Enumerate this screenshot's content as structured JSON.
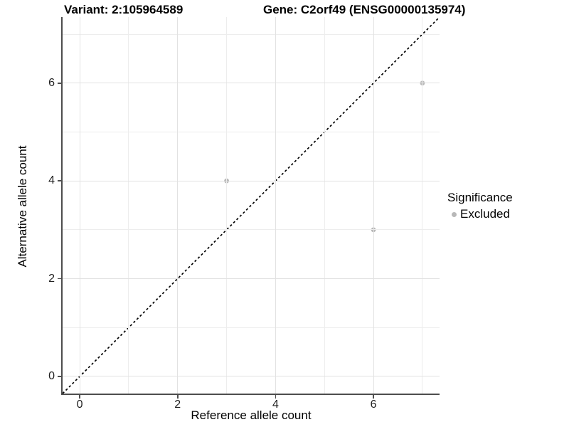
{
  "titles": {
    "variant": "Variant: 2:105964589",
    "gene": "Gene: C2orf49 (ENSG00000135974)"
  },
  "chart_data": {
    "type": "scatter",
    "xlabel": "Reference allele count",
    "ylabel": "Alternative allele count",
    "xlim": [
      -0.35,
      7.35
    ],
    "ylim": [
      -0.35,
      7.35
    ],
    "x_ticks": [
      0,
      2,
      4,
      6
    ],
    "y_ticks": [
      0,
      2,
      4,
      6
    ],
    "x_minor": [
      1,
      3,
      5,
      7
    ],
    "y_minor": [
      1,
      3,
      5,
      7
    ],
    "grid": true,
    "points": [
      {
        "x": 3,
        "y": 4,
        "significance": "Excluded"
      },
      {
        "x": 6,
        "y": 3,
        "significance": "Excluded"
      },
      {
        "x": 7,
        "y": 6,
        "significance": "Excluded"
      }
    ],
    "identity_line": {
      "slope": 1,
      "intercept": 0,
      "style": "dashed",
      "color": "#000000"
    },
    "point_color": "#b8b8b8",
    "legend_position": "right"
  },
  "legend": {
    "title": "Significance",
    "items": [
      {
        "label": "Excluded",
        "color": "#b8b8b8"
      }
    ]
  },
  "colors": {
    "background": "#ffffff",
    "axis_line": "#4d4d4d",
    "major_gridline": "#e2e2e2",
    "minor_gridline": "#ededed",
    "point": "#b8b8b8",
    "dashed_line": "#000000"
  }
}
